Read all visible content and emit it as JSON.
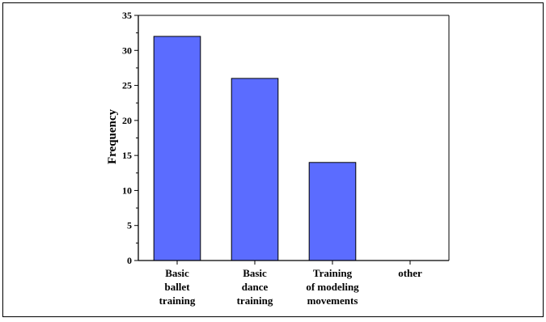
{
  "chart_data": {
    "type": "bar",
    "title": "",
    "xlabel": "",
    "ylabel": "Frequency",
    "categories": [
      [
        "Basic",
        "ballet",
        "training"
      ],
      [
        "Basic",
        "dance",
        "training"
      ],
      [
        "Training",
        "of modeling",
        "movements"
      ],
      [
        "other"
      ]
    ],
    "values": [
      32,
      26,
      14,
      0
    ],
    "ylim": [
      0,
      35
    ],
    "yticks": [
      0,
      5,
      10,
      15,
      20,
      25,
      30,
      35
    ],
    "grid": false,
    "legend": "none",
    "bar_color": "#5b6cff",
    "bar_edge_color": "#000000"
  }
}
